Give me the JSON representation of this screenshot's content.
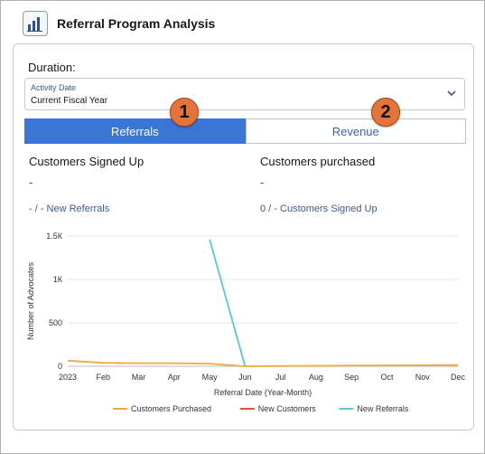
{
  "header": {
    "title": "Referral Program Analysis",
    "icon": "bar-chart-icon"
  },
  "filter": {
    "section_label": "Duration:",
    "field_label": "Activity Date",
    "field_value": "Current Fiscal Year"
  },
  "tabs": [
    {
      "label": "Referrals",
      "active": true
    },
    {
      "label": "Revenue",
      "active": false
    }
  ],
  "callouts": [
    "1",
    "2"
  ],
  "metrics": {
    "left": {
      "title": "Customers Signed Up",
      "value": "-",
      "sub": "- / - New Referrals"
    },
    "right": {
      "title": "Customers purchased",
      "value": "-",
      "sub": "0 /  - Customers Signed Up"
    }
  },
  "colors": {
    "accent": "#3a76d4",
    "callout": "#e5743a"
  },
  "chart_data": {
    "type": "line",
    "xlabel": "Referral Date (Year-Month)",
    "ylabel": "Number of Advocates",
    "categories": [
      "2023",
      "Feb",
      "Mar",
      "Apr",
      "May",
      "Jun",
      "Jul",
      "Aug",
      "Sep",
      "Oct",
      "Nov",
      "Dec"
    ],
    "ytick_labels": [
      "0",
      "500",
      "1К",
      "1.5К"
    ],
    "ytick_values": [
      0,
      500,
      1000,
      1500
    ],
    "ylim": [
      0,
      1500
    ],
    "grid": true,
    "legend_position": "bottom",
    "series": [
      {
        "name": "Customers Purchased",
        "color": "#f2a93b",
        "values": [
          65,
          40,
          35,
          35,
          30,
          0,
          3,
          5,
          8,
          10,
          12,
          15
        ]
      },
      {
        "name": "New Customers",
        "color": "#e4502f",
        "values": [
          null,
          null,
          null,
          null,
          null,
          null,
          null,
          null,
          null,
          null,
          null,
          null
        ]
      },
      {
        "name": "New Referrals",
        "color": "#5ec3e0",
        "values": [
          null,
          null,
          null,
          null,
          1460,
          0,
          null,
          null,
          null,
          null,
          null,
          null
        ]
      }
    ]
  }
}
